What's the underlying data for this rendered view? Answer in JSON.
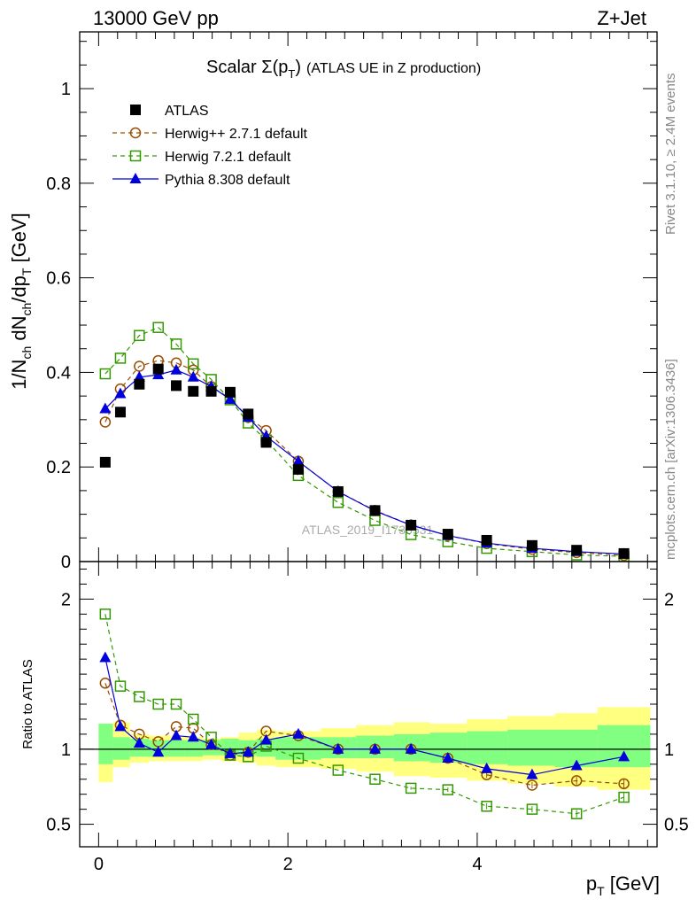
{
  "header": {
    "left": "13000 GeV pp",
    "right": "Z+Jet"
  },
  "side_labels": {
    "rivet": "Rivet 3.1.10, ≥ 2.4M events",
    "mcplots": "mcplots.cern.ch [arXiv:1306.3436]"
  },
  "watermark": "ATLAS_2019_I1736531",
  "chart_data": [
    {
      "type": "scatter",
      "panel": "main",
      "title_main": "Scalar Σ(p",
      "title_sub": "T",
      "title_paren": ")",
      "title_rest": "(ATLAS UE in Z production)",
      "ylabel": "1/N_ch dN_ch/dp_T [GeV]",
      "xlim": [
        -0.2,
        5.9
      ],
      "ylim": [
        0,
        1.12
      ],
      "yticks": [
        0,
        0.2,
        0.4,
        0.6,
        0.8,
        1
      ],
      "ytick_labels": [
        "0",
        "0.2",
        "0.4",
        "0.6",
        "0.8",
        "1"
      ],
      "legend_position": "top-left",
      "x": [
        0.07,
        0.23,
        0.43,
        0.63,
        0.82,
        1.0,
        1.19,
        1.39,
        1.58,
        1.77,
        2.11,
        2.53,
        2.92,
        3.3,
        3.69,
        4.1,
        4.58,
        5.05,
        5.55
      ],
      "series": [
        {
          "name": "ATLAS",
          "color": "#000000",
          "marker": "square-filled",
          "values": [
            0.21,
            0.316,
            0.375,
            0.407,
            0.372,
            0.36,
            0.36,
            0.358,
            0.312,
            0.252,
            0.195,
            0.148,
            0.108,
            0.077,
            0.058,
            0.045,
            0.034,
            0.024,
            0.017
          ]
        },
        {
          "name": "Herwig++ 2.7.1 default",
          "color": "#9a4d00",
          "marker": "circle-open",
          "dash": true,
          "values": [
            0.295,
            0.365,
            0.413,
            0.425,
            0.42,
            0.405,
            0.37,
            0.345,
            0.305,
            0.277,
            0.212,
            0.148,
            0.108,
            0.077,
            0.055,
            0.038,
            0.026,
            0.019,
            0.013
          ]
        },
        {
          "name": "Herwig 7.2.1 default",
          "color": "#339900",
          "marker": "square-open",
          "dash": true,
          "values": [
            0.397,
            0.43,
            0.478,
            0.495,
            0.46,
            0.418,
            0.385,
            0.342,
            0.293,
            0.257,
            0.182,
            0.125,
            0.087,
            0.057,
            0.042,
            0.028,
            0.021,
            0.014,
            0.011
          ]
        },
        {
          "name": "Pythia 8.308 default",
          "color": "#0000dd",
          "marker": "triangle-filled",
          "values": [
            0.323,
            0.355,
            0.39,
            0.395,
            0.405,
            0.39,
            0.37,
            0.343,
            0.305,
            0.265,
            0.212,
            0.148,
            0.107,
            0.077,
            0.055,
            0.039,
            0.028,
            0.021,
            0.016
          ]
        }
      ]
    },
    {
      "type": "scatter",
      "panel": "ratio",
      "xlabel": "p_T [GeV]",
      "ylabel": "Ratio to ATLAS",
      "xlim": [
        -0.2,
        5.9
      ],
      "ylim": [
        0.35,
        2.25
      ],
      "xticks": [
        0,
        2,
        4
      ],
      "xtick_labels": [
        "0",
        "2",
        "4"
      ],
      "yticks": [
        0.5,
        1,
        2
      ],
      "ytick_labels": [
        "0.5",
        "1",
        "2"
      ],
      "bin_edges": [
        0.0,
        0.15,
        0.33,
        0.53,
        0.72,
        0.91,
        1.1,
        1.29,
        1.48,
        1.67,
        1.87,
        2.35,
        2.72,
        3.12,
        3.5,
        3.89,
        4.32,
        4.82,
        5.27,
        5.83
      ],
      "band_green": [
        [
          0.9,
          1.17
        ],
        [
          0.93,
          1.08
        ],
        [
          0.95,
          1.07
        ],
        [
          0.95,
          1.06
        ],
        [
          0.95,
          1.06
        ],
        [
          0.95,
          1.06
        ],
        [
          0.96,
          1.06
        ],
        [
          0.96,
          1.07
        ],
        [
          0.96,
          1.06
        ],
        [
          0.95,
          1.07
        ],
        [
          0.93,
          1.08
        ],
        [
          0.94,
          1.08
        ],
        [
          0.94,
          1.09
        ],
        [
          0.92,
          1.1
        ],
        [
          0.91,
          1.11
        ],
        [
          0.9,
          1.12
        ],
        [
          0.89,
          1.13
        ],
        [
          0.88,
          1.13
        ],
        [
          0.88,
          1.16
        ]
      ],
      "band_yellow": [
        [
          0.78,
          1.17
        ],
        [
          0.88,
          1.18
        ],
        [
          0.91,
          1.1
        ],
        [
          0.92,
          1.09
        ],
        [
          0.92,
          1.09
        ],
        [
          0.92,
          1.08
        ],
        [
          0.93,
          1.07
        ],
        [
          0.92,
          1.08
        ],
        [
          0.91,
          1.11
        ],
        [
          0.89,
          1.13
        ],
        [
          0.88,
          1.12
        ],
        [
          0.87,
          1.14
        ],
        [
          0.85,
          1.16
        ],
        [
          0.82,
          1.18
        ],
        [
          0.81,
          1.17
        ],
        [
          0.79,
          1.2
        ],
        [
          0.77,
          1.22
        ],
        [
          0.75,
          1.24
        ],
        [
          0.73,
          1.28
        ]
      ],
      "x": [
        0.07,
        0.23,
        0.43,
        0.63,
        0.82,
        1.0,
        1.19,
        1.39,
        1.58,
        1.77,
        2.11,
        2.53,
        2.92,
        3.3,
        3.69,
        4.1,
        4.58,
        5.05,
        5.55
      ],
      "series": [
        {
          "name": "Herwig++ 2.7.1 default",
          "color": "#9a4d00",
          "marker": "circle-open",
          "dash": true,
          "values": [
            1.44,
            1.16,
            1.1,
            1.05,
            1.15,
            1.14,
            1.03,
            0.96,
            0.98,
            1.12,
            1.09,
            1.0,
            1.0,
            1.0,
            0.94,
            0.83,
            0.76,
            0.79,
            0.77
          ]
        },
        {
          "name": "Herwig 7.2.1 default",
          "color": "#339900",
          "marker": "square-open",
          "dash": true,
          "values": [
            1.9,
            1.42,
            1.35,
            1.3,
            1.3,
            1.2,
            1.08,
            0.96,
            0.95,
            1.02,
            0.94,
            0.86,
            0.8,
            0.74,
            0.73,
            0.62,
            0.6,
            0.57,
            0.68
          ]
        },
        {
          "name": "Pythia 8.308 default",
          "color": "#0000dd",
          "marker": "triangle-filled",
          "values": [
            1.61,
            1.15,
            1.04,
            0.98,
            1.09,
            1.08,
            1.03,
            0.97,
            0.98,
            1.06,
            1.1,
            1.0,
            1.0,
            1.0,
            0.94,
            0.87,
            0.83,
            0.89,
            0.95
          ]
        }
      ],
      "ratio_errors": [
        0.0,
        0.0,
        0.0,
        0.0,
        0.0,
        0.0,
        0.0,
        0.0,
        0.0,
        0.0,
        0.0,
        0.0,
        0.01,
        0.01,
        0.015,
        0.02,
        0.02,
        0.025,
        0.03
      ]
    }
  ]
}
